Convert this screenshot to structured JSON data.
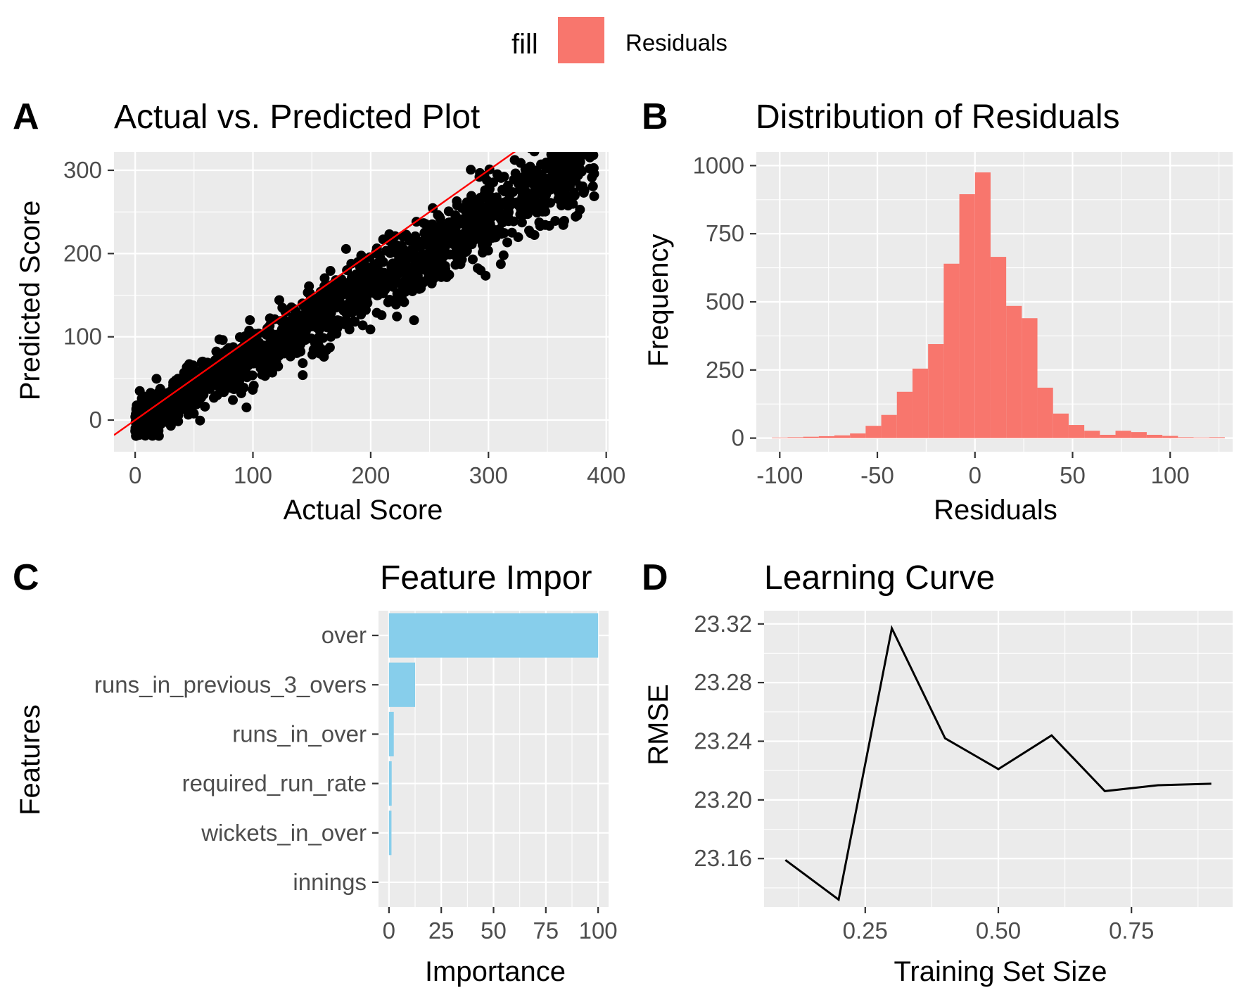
{
  "legend": {
    "title": "fill",
    "label": "Residuals",
    "color": "#F8766D"
  },
  "chart_data": [
    {
      "tag": "A",
      "type": "scatter",
      "title": "Actual vs. Predicted Plot",
      "xlabel": "Actual Score",
      "ylabel": "Predicted Score",
      "xlim": [
        -18,
        402
      ],
      "ylim": [
        -38,
        322
      ],
      "xticks": [
        0,
        100,
        200,
        300,
        400
      ],
      "yticks": [
        0,
        100,
        200,
        300
      ],
      "point_color": "#000000",
      "point_count": 1600,
      "point_model": {
        "slope": 0.82,
        "intercept": -3,
        "noise_sd": 12
      },
      "line": {
        "color": "#FF0000",
        "slope": 1,
        "intercept": 0
      }
    },
    {
      "tag": "B",
      "type": "bar",
      "title": "Distribution of Residuals",
      "xlabel": "Residuals",
      "ylabel": "Frequency",
      "xlim": [
        -112,
        132
      ],
      "ylim": [
        -50,
        1050
      ],
      "xticks": [
        -100,
        -50,
        0,
        50,
        100
      ],
      "yticks": [
        0,
        250,
        500,
        750,
        1000
      ],
      "fill": "#F8766D",
      "bin_width": 8,
      "bin_centers": [
        -100,
        -92,
        -84,
        -76,
        -68,
        -60,
        -52,
        -44,
        -36,
        -28,
        -20,
        -12,
        -4,
        4,
        12,
        20,
        28,
        36,
        44,
        52,
        60,
        68,
        76,
        84,
        92,
        100,
        108,
        116,
        124
      ],
      "values": [
        2,
        3,
        5,
        7,
        10,
        17,
        45,
        85,
        170,
        255,
        345,
        640,
        895,
        975,
        665,
        485,
        440,
        185,
        90,
        48,
        27,
        12,
        27,
        22,
        12,
        8,
        3,
        2,
        3
      ]
    },
    {
      "tag": "C",
      "type": "bar",
      "orientation": "horizontal",
      "title": "Feature Impor",
      "xlabel": "Importance",
      "ylabel": "Features",
      "xlim": [
        -5,
        105
      ],
      "xticks": [
        0,
        25,
        50,
        75,
        100
      ],
      "fill": "#87CEEB",
      "categories": [
        "over",
        "runs_in_previous_3_overs",
        "runs_in_over",
        "required_run_rate",
        "wickets_in_over",
        "innings"
      ],
      "values": [
        100,
        12.5,
        2.3,
        1.3,
        1.2,
        0
      ]
    },
    {
      "tag": "D",
      "type": "line",
      "title": "Learning Curve",
      "xlabel": "Training Set Size",
      "ylabel": "RMSE",
      "xlim": [
        0.06,
        0.94
      ],
      "ylim": [
        23.127,
        23.329
      ],
      "xticks": [
        0.25,
        0.5,
        0.75
      ],
      "xtick_labels": [
        "0.25",
        "0.50",
        "0.75"
      ],
      "yticks": [
        23.16,
        23.2,
        23.24,
        23.28,
        23.32
      ],
      "ytick_labels": [
        "23.16",
        "23.20",
        "23.24",
        "23.28",
        "23.32"
      ],
      "line_color": "#000000",
      "x": [
        0.1,
        0.2,
        0.3,
        0.4,
        0.5,
        0.6,
        0.7,
        0.8,
        0.9
      ],
      "y": [
        23.159,
        23.132,
        23.317,
        23.242,
        23.221,
        23.244,
        23.206,
        23.21,
        23.211
      ]
    }
  ]
}
